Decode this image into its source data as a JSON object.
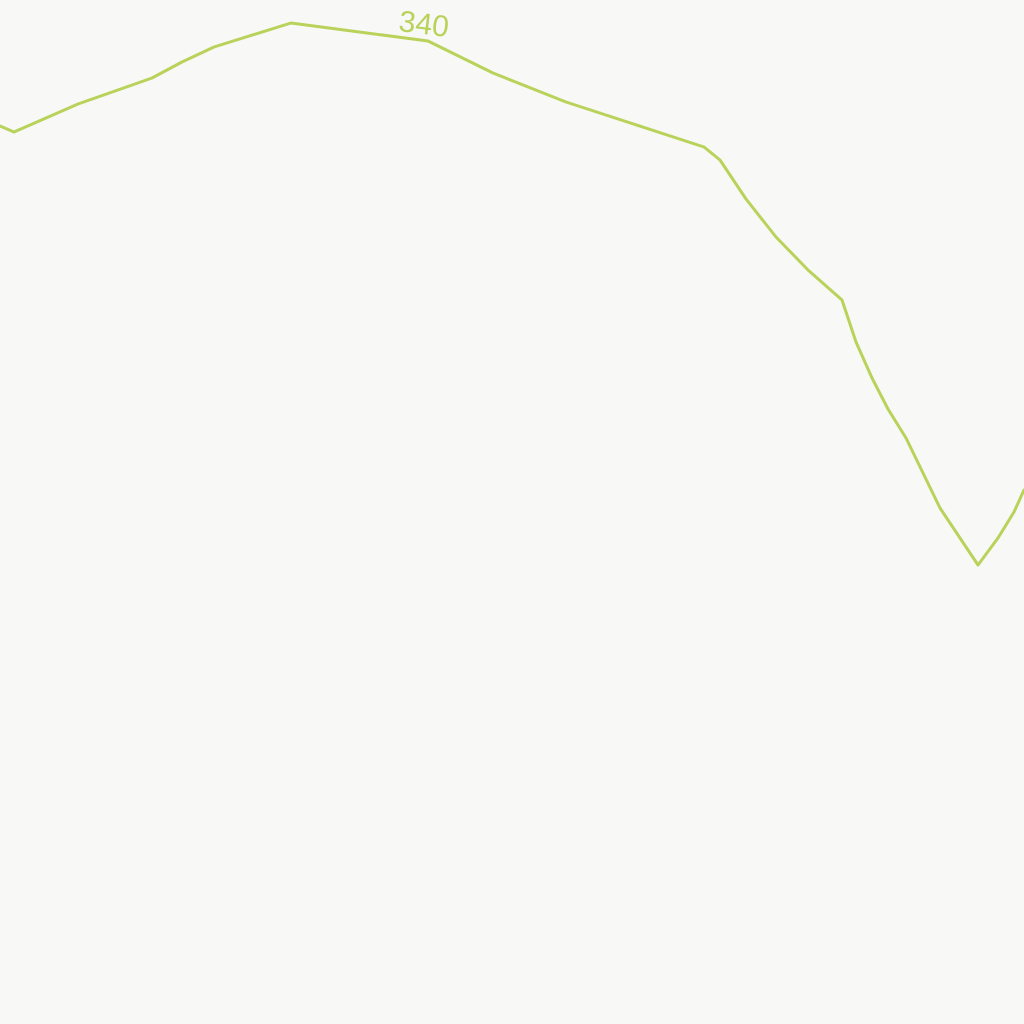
{
  "map": {
    "background_color": "#f8f8f7",
    "contours": [
      {
        "elevation_label": "340",
        "color": "#b9d25a"
      }
    ]
  }
}
